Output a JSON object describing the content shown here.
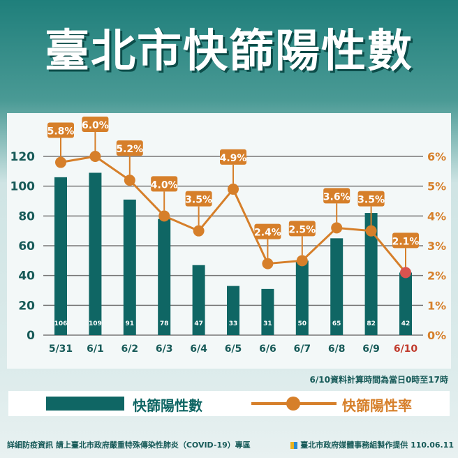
{
  "title": "臺北市快篩陽性數",
  "note": "6/10資料計算時間為當日0時至17時",
  "legend": {
    "bar": "快篩陽性數",
    "line": "快篩陽性率"
  },
  "footer": {
    "left": "詳細防疫資訊 請上臺北市政府嚴重特殊傳染性肺炎（COVID-19）專區",
    "right": "臺北市政府媒體事務組製作提供 110.06.11"
  },
  "colors": {
    "bar": "#0f6664",
    "line": "#d67f2a",
    "highlight": "#d9534f"
  },
  "chart_data": {
    "type": "bar+line",
    "categories": [
      "5/31",
      "6/1",
      "6/2",
      "6/3",
      "6/4",
      "6/5",
      "6/6",
      "6/7",
      "6/8",
      "6/9",
      "6/10"
    ],
    "series": [
      {
        "name": "快篩陽性數",
        "type": "bar",
        "axis": "left",
        "values": [
          106,
          109,
          91,
          78,
          47,
          33,
          31,
          50,
          65,
          82,
          42
        ]
      },
      {
        "name": "快篩陽性率",
        "type": "line",
        "axis": "right",
        "values": [
          5.8,
          6.0,
          5.2,
          4.0,
          3.5,
          4.9,
          2.4,
          2.5,
          3.6,
          3.5,
          2.1
        ]
      }
    ],
    "y_left": {
      "range": [
        0,
        120
      ],
      "ticks": [
        "0",
        "20",
        "40",
        "60",
        "80",
        "100",
        "120"
      ]
    },
    "y_right": {
      "range": [
        0,
        6
      ],
      "ticks": [
        "0%",
        "1%",
        "2%",
        "3%",
        "4%",
        "5%",
        "6%"
      ]
    },
    "grid": true,
    "highlight_category": "6/10"
  }
}
